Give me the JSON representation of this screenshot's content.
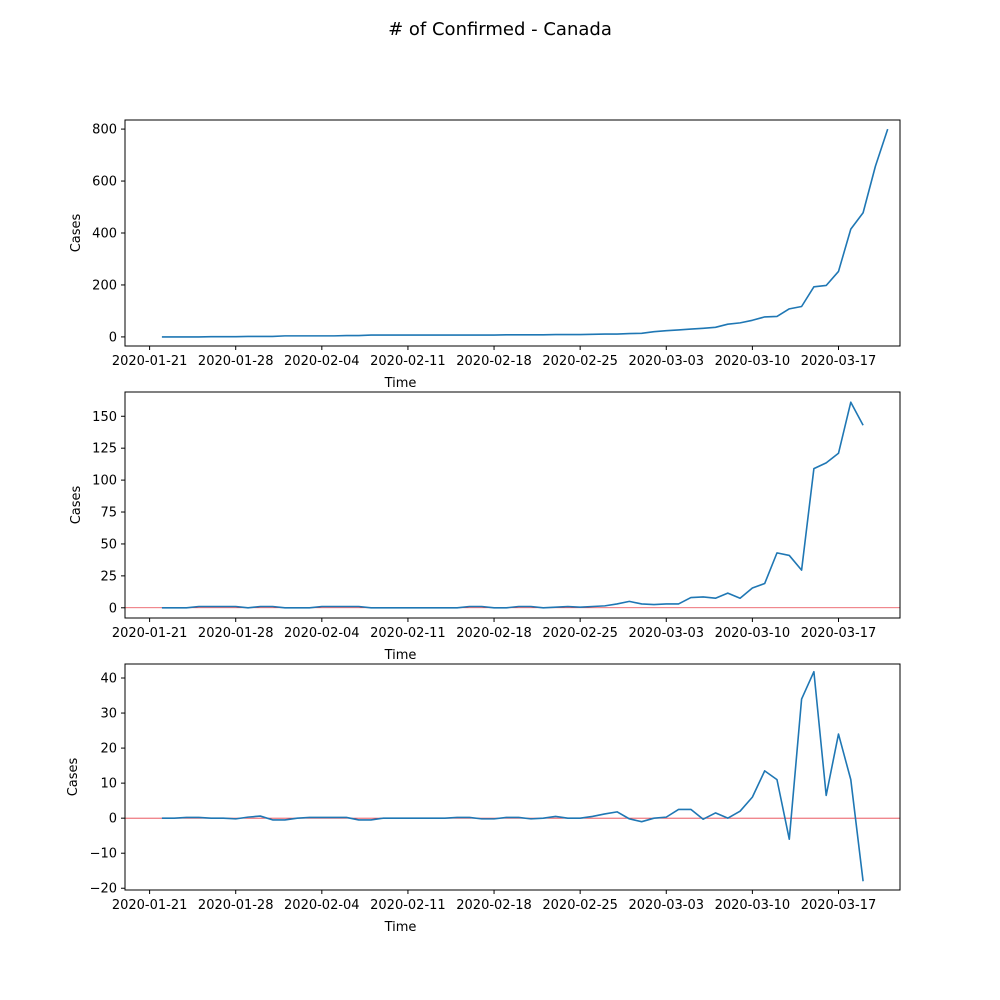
{
  "title": "# of Confirmed - Canada",
  "colors": {
    "line": "#1f77b4",
    "zero_line": "#e8414a"
  },
  "chart_data": [
    {
      "type": "line",
      "xlabel": "Time",
      "ylabel": "Cases",
      "x_ticks": [
        "2020-01-21",
        "2020-01-28",
        "2020-02-04",
        "2020-02-11",
        "2020-02-18",
        "2020-02-25",
        "2020-03-03",
        "2020-03-10",
        "2020-03-17"
      ],
      "y_ticks": [
        "0",
        "200",
        "400",
        "600",
        "800"
      ],
      "ylim": [
        -35,
        835
      ],
      "xlim": [
        "2020-01-19",
        "2020-03-22"
      ],
      "zero_line": false,
      "series": [
        {
          "x_start": "2020-01-22",
          "values": [
            0,
            0,
            0,
            0,
            1,
            1,
            1,
            2,
            2,
            2,
            4,
            4,
            4,
            4,
            4,
            5,
            5,
            7,
            7,
            7,
            7,
            7,
            7,
            7,
            7,
            7,
            7,
            7,
            8,
            8,
            8,
            8,
            9,
            9,
            9,
            10,
            11,
            11,
            13,
            14,
            20,
            24,
            27,
            30,
            33,
            37,
            49,
            54,
            64,
            77,
            79,
            108,
            117,
            193,
            198,
            252,
            415,
            478,
            657,
            800
          ]
        }
      ]
    },
    {
      "type": "line",
      "xlabel": "Time",
      "ylabel": "Cases",
      "x_ticks": [
        "2020-01-21",
        "2020-01-28",
        "2020-02-04",
        "2020-02-11",
        "2020-02-18",
        "2020-02-25",
        "2020-03-03",
        "2020-03-10",
        "2020-03-17"
      ],
      "y_ticks": [
        "0",
        "25",
        "50",
        "75",
        "100",
        "125",
        "150"
      ],
      "ylim": [
        -8,
        169
      ],
      "xlim": [
        "2020-01-19",
        "2020-03-22"
      ],
      "zero_line": true,
      "series": [
        {
          "x_start": "2020-01-22",
          "values": [
            0,
            0,
            0,
            1,
            1,
            1,
            1,
            0,
            1,
            1,
            0,
            0,
            0,
            1,
            1,
            1,
            1,
            0,
            0,
            0,
            0,
            0,
            0,
            0,
            0,
            1,
            1,
            0,
            0,
            1,
            1,
            0,
            0.5,
            1,
            0.5,
            1,
            1.5,
            3,
            5,
            3,
            2.5,
            3,
            3,
            8,
            8.5,
            7.5,
            11.5,
            7.5,
            15.5,
            19,
            43,
            41,
            29.5,
            109,
            113.5,
            121,
            161,
            143
          ]
        }
      ]
    },
    {
      "type": "line",
      "xlabel": "Time",
      "ylabel": "Cases",
      "x_ticks": [
        "2020-01-21",
        "2020-01-28",
        "2020-02-04",
        "2020-02-11",
        "2020-02-18",
        "2020-02-25",
        "2020-03-03",
        "2020-03-10",
        "2020-03-17"
      ],
      "y_ticks": [
        "−20",
        "−10",
        "0",
        "10",
        "20",
        "30",
        "40"
      ],
      "ylim": [
        -20.5,
        44
      ],
      "xlim": [
        "2020-01-19",
        "2020-03-22"
      ],
      "zero_line": true,
      "series": [
        {
          "x_start": "2020-01-22",
          "values": [
            0,
            0,
            0.2,
            0.2,
            0,
            0,
            -0.2,
            0.3,
            0.6,
            -0.5,
            -0.5,
            0,
            0.2,
            0.2,
            0.2,
            0.2,
            -0.5,
            -0.5,
            0,
            0,
            0,
            0,
            0,
            0,
            0.2,
            0.2,
            -0.2,
            -0.2,
            0.2,
            0.2,
            -0.2,
            0,
            0.5,
            0,
            0,
            0.5,
            1.2,
            1.8,
            -0.2,
            -1,
            0,
            0.3,
            2.5,
            2.5,
            -0.3,
            1.5,
            0,
            2,
            6,
            13.5,
            11,
            -6,
            34,
            41.8,
            6.5,
            24,
            11,
            -18
          ]
        }
      ]
    }
  ]
}
